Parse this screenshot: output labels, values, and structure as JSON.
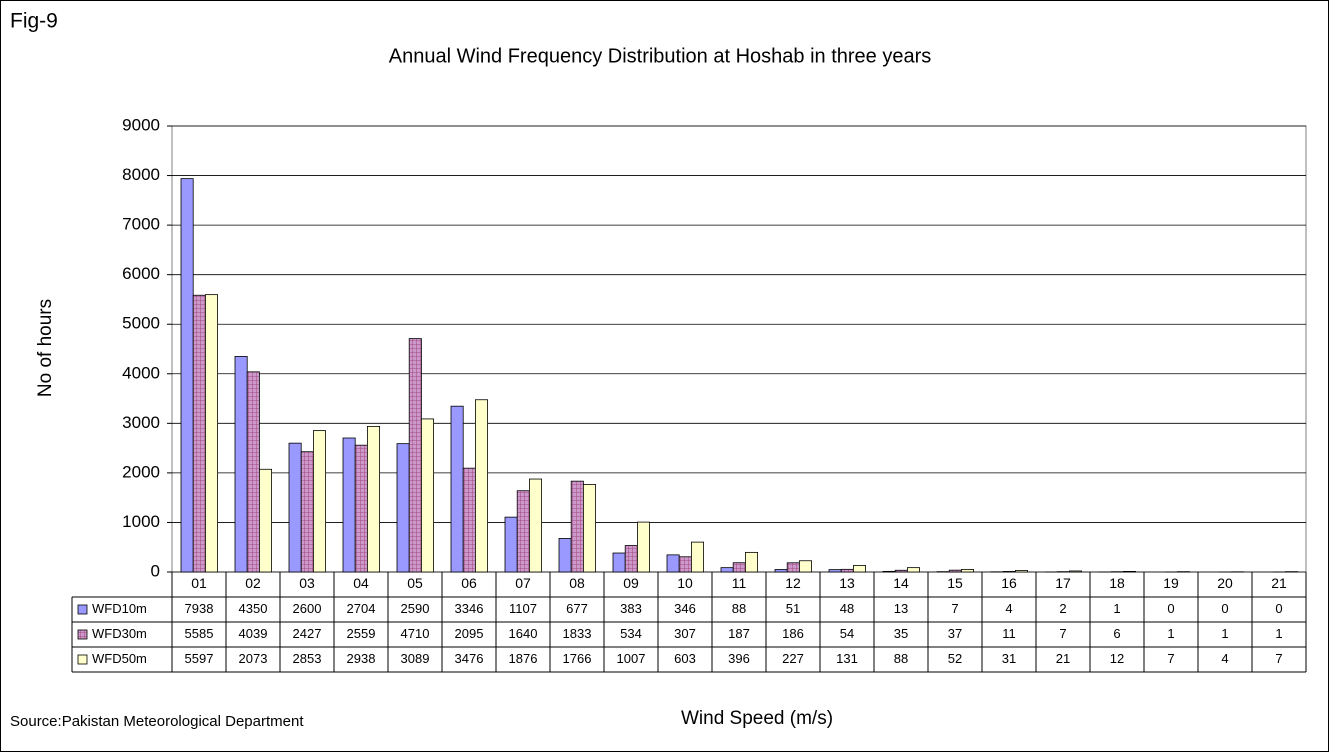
{
  "chart_data": {
    "type": "bar",
    "figure_label": "Fig-9",
    "title": "Annual Wind Frequency Distribution at Hoshab in three years",
    "y_label": "No of hours",
    "x_label": "Wind Speed (m/s)",
    "source": "Source:Pakistan Meteorological Department",
    "categories": [
      "01",
      "02",
      "03",
      "04",
      "05",
      "06",
      "07",
      "08",
      "09",
      "10",
      "11",
      "12",
      "13",
      "14",
      "15",
      "16",
      "17",
      "18",
      "19",
      "20",
      "21"
    ],
    "series": [
      {
        "name": "WFD10m",
        "color": "#9999ff",
        "values": [
          7938,
          4350,
          2600,
          2704,
          2590,
          3346,
          1107,
          677,
          383,
          346,
          88,
          51,
          48,
          13,
          7,
          4,
          2,
          1,
          0,
          0,
          0
        ]
      },
      {
        "name": "WFD30m",
        "color": "#cc99cc",
        "values": [
          5585,
          4039,
          2427,
          2559,
          4710,
          2095,
          1640,
          1833,
          534,
          307,
          187,
          186,
          54,
          35,
          37,
          11,
          7,
          6,
          1,
          1,
          1
        ]
      },
      {
        "name": "WFD50m",
        "color": "#ffffcc",
        "values": [
          5597,
          2073,
          2853,
          2938,
          3089,
          3476,
          1876,
          1766,
          1007,
          603,
          396,
          227,
          131,
          88,
          52,
          31,
          21,
          12,
          7,
          4,
          7
        ]
      }
    ],
    "ylim": [
      0,
      9000
    ],
    "yticks": [
      0,
      1000,
      2000,
      3000,
      4000,
      5000,
      6000,
      7000,
      8000,
      9000
    ],
    "grid": true
  }
}
